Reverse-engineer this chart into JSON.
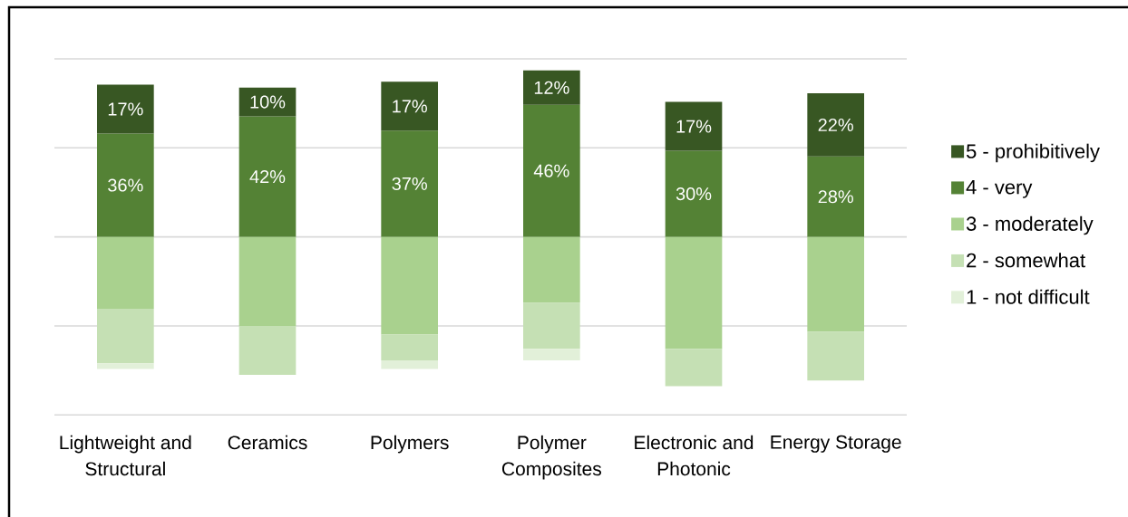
{
  "chart_data": {
    "type": "bar",
    "stacked": true,
    "categories": [
      "Lightweight and Structural",
      "Ceramics",
      "Polymers",
      "Polymer Composites",
      "Electronic and Photonic",
      "Energy Storage"
    ],
    "series": [
      {
        "name": "4 - very",
        "color": "#548235",
        "values": [
          36,
          42,
          37,
          46,
          30,
          28
        ],
        "value_labels": [
          "36%",
          "42%",
          "37%",
          "46%",
          "30%",
          "28%"
        ]
      },
      {
        "name": "5 - prohibitively",
        "color": "#385723",
        "values": [
          17,
          10,
          17,
          12,
          17,
          22
        ],
        "value_labels": [
          "17%",
          "10%",
          "17%",
          "12%",
          "17%",
          "22%"
        ]
      },
      {
        "name": "3 - moderately",
        "color": "#a9d18e",
        "values": [
          -25,
          -31,
          -34,
          -23,
          -39,
          -33
        ]
      },
      {
        "name": "2 - somewhat",
        "color": "#c5e0b4",
        "values": [
          -19,
          -17,
          -9,
          -16,
          -13,
          -17
        ]
      },
      {
        "name": "1 - not difficult",
        "color": "#e2f0d9",
        "values": [
          -2,
          null,
          -3,
          -4,
          null,
          null
        ]
      }
    ],
    "ylim": [
      -62,
      62
    ],
    "yticks": [
      {
        "value": -62,
        "label": null
      },
      {
        "value": -31,
        "label": null
      },
      {
        "value": 0,
        "label": null
      },
      {
        "value": 31,
        "label": null
      },
      {
        "value": 62,
        "label": null
      }
    ],
    "grid": "y",
    "tick_labels": "x",
    "legend": "right"
  }
}
